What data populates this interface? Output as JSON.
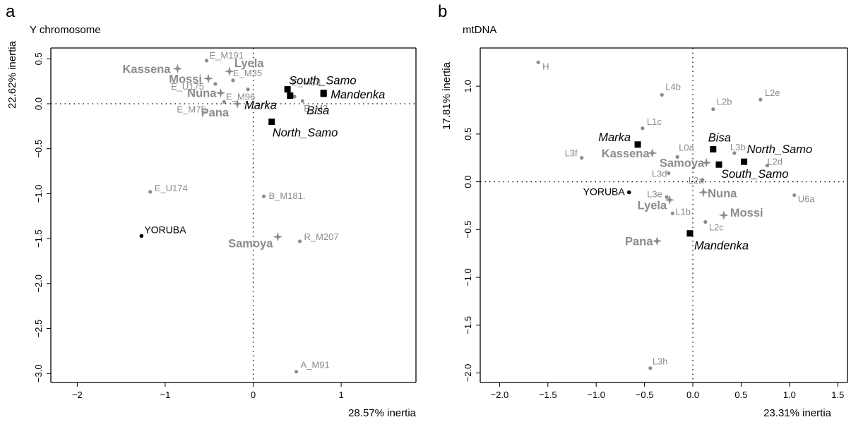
{
  "chart_data": [
    {
      "panel_letter": "a",
      "title": "Y chromosome",
      "type": "scatter",
      "xlabel": "28.57% inertia",
      "ylabel": "22.62% inertia",
      "xlim": [
        -2.3,
        1.85
      ],
      "ylim": [
        -3.1,
        0.62
      ],
      "xticks": [
        -2,
        -1,
        0,
        1
      ],
      "yticks": [
        -3.0,
        -2.5,
        -2.0,
        -1.5,
        -1.0,
        -0.5,
        0.0,
        0.5
      ],
      "xtick_labels": [
        "−2",
        "−1",
        "0",
        "1"
      ],
      "ytick_labels": [
        "−3.0",
        "−2.5",
        "−2.0",
        "−1.5",
        "−1.0",
        "−0.5",
        "0.0",
        "0.5"
      ],
      "grid": false,
      "reference_lines": {
        "x": 0,
        "y": 0
      },
      "colors": {
        "gray": "#8c8c8c",
        "black": "#000000"
      },
      "series": [
        {
          "kind": "haplogroups",
          "marker": "dot",
          "points": [
            {
              "label": "E_M191",
              "x": -0.53,
              "y": 0.48
            },
            {
              "label": "E_M35",
              "x": -0.23,
              "y": 0.26
            },
            {
              "label": "E_M33",
              "x": 0.47,
              "y": 0.08
            },
            {
              "label": "E_U175",
              "x": -0.43,
              "y": 0.22
            },
            {
              "label": "E_M96",
              "x": -0.06,
              "y": 0.16
            },
            {
              "label": "E_M75",
              "x": -0.33,
              "y": 0.02
            },
            {
              "label": "E_M2",
              "x": 0.56,
              "y": 0.03
            },
            {
              "label": "E_U174",
              "x": -1.17,
              "y": -0.98
            },
            {
              "label": "B_M181.",
              "x": 0.12,
              "y": -1.03
            },
            {
              "label": "R_M207",
              "x": 0.53,
              "y": -1.53
            },
            {
              "label": "A_M91",
              "x": 0.49,
              "y": -2.98
            }
          ]
        },
        {
          "kind": "reference",
          "marker": "dot",
          "points": [
            {
              "label": "YORUBA",
              "x": -1.27,
              "y": -1.47
            }
          ]
        },
        {
          "kind": "gray-populations",
          "marker": "star",
          "points": [
            {
              "label": "Kassena",
              "x": -0.86,
              "y": 0.39
            },
            {
              "label": "Lyela",
              "x": -0.27,
              "y": 0.36
            },
            {
              "label": "Mossi",
              "x": -0.51,
              "y": 0.28
            },
            {
              "label": "Nuna",
              "x": -0.37,
              "y": 0.12
            },
            {
              "label": "Pana",
              "x": -0.18,
              "y": 0.0
            },
            {
              "label": "Samoya",
              "x": 0.28,
              "y": -1.48
            }
          ]
        },
        {
          "kind": "black-populations",
          "marker": "square",
          "points": [
            {
              "label": "South_Samo",
              "x": 0.39,
              "y": 0.16
            },
            {
              "label": "Mandenka",
              "x": 0.8,
              "y": 0.12
            },
            {
              "label": "Marka",
              "x": 0.42,
              "y": 0.09
            },
            {
              "label": "Bisa",
              "x": 0.8,
              "y": 0.11
            },
            {
              "label": "North_Samo",
              "x": 0.21,
              "y": -0.2
            }
          ]
        }
      ]
    },
    {
      "panel_letter": "b",
      "title": "mtDNA",
      "type": "scatter",
      "xlabel": "23.31% inertia",
      "ylabel": "17.81% inertia",
      "xlim": [
        -2.2,
        1.6
      ],
      "ylim": [
        -2.1,
        1.4
      ],
      "xticks": [
        -2.0,
        -1.5,
        -1.0,
        -0.5,
        0.0,
        0.5,
        1.0,
        1.5
      ],
      "yticks": [
        -2.0,
        -1.5,
        -1.0,
        -0.5,
        0.0,
        0.5,
        1.0
      ],
      "xtick_labels": [
        "−2.0",
        "−1.5",
        "−1.0",
        "−0.5",
        "0.0",
        "0.5",
        "1.0",
        "1.5"
      ],
      "ytick_labels": [
        "−2.0",
        "−1.5",
        "−1.0",
        "−0.5",
        "0.0",
        "0.5",
        "1.0"
      ],
      "grid": false,
      "reference_lines": {
        "x": 0,
        "y": 0
      },
      "colors": {
        "gray": "#8c8c8c",
        "black": "#000000"
      },
      "series": [
        {
          "kind": "haplogroups",
          "marker": "dot",
          "points": [
            {
              "label": "H",
              "x": -1.6,
              "y": 1.25
            },
            {
              "label": "L4b",
              "x": -0.32,
              "y": 0.91
            },
            {
              "label": "L2b",
              "x": 0.21,
              "y": 0.76
            },
            {
              "label": "L2e",
              "x": 0.7,
              "y": 0.86
            },
            {
              "label": "L1c",
              "x": -0.52,
              "y": 0.56
            },
            {
              "label": "L3f",
              "x": -1.15,
              "y": 0.25
            },
            {
              "label": "L0a",
              "x": -0.16,
              "y": 0.26
            },
            {
              "label": "L3b",
              "x": 0.43,
              "y": 0.3
            },
            {
              "label": "L2d",
              "x": 0.77,
              "y": 0.17
            },
            {
              "label": "L3d",
              "x": -0.25,
              "y": 0.09
            },
            {
              "label": "L2a",
              "x": 0.1,
              "y": 0.02
            },
            {
              "label": "L3e",
              "x": -0.27,
              "y": -0.16
            },
            {
              "label": "L1b",
              "x": -0.21,
              "y": -0.33
            },
            {
              "label": "L2c",
              "x": 0.13,
              "y": -0.42
            },
            {
              "label": "U6a",
              "x": 1.05,
              "y": -0.14
            },
            {
              "label": "L3h",
              "x": -0.44,
              "y": -1.95
            }
          ]
        },
        {
          "kind": "reference",
          "marker": "dot",
          "points": [
            {
              "label": "YORUBA",
              "x": -0.66,
              "y": -0.11
            }
          ]
        },
        {
          "kind": "gray-populations",
          "marker": "star",
          "points": [
            {
              "label": "Kassena",
              "x": -0.42,
              "y": 0.3
            },
            {
              "label": "Samoya",
              "x": 0.14,
              "y": 0.2
            },
            {
              "label": "Nuna",
              "x": 0.11,
              "y": -0.11
            },
            {
              "label": "Lyela",
              "x": -0.24,
              "y": -0.19
            },
            {
              "label": "Mossi",
              "x": 0.32,
              "y": -0.35
            },
            {
              "label": "Pana",
              "x": -0.37,
              "y": -0.62
            }
          ]
        },
        {
          "kind": "black-populations",
          "marker": "square",
          "points": [
            {
              "label": "Marka",
              "x": -0.57,
              "y": 0.39
            },
            {
              "label": "Bisa",
              "x": 0.21,
              "y": 0.34
            },
            {
              "label": "North_Samo",
              "x": 0.53,
              "y": 0.21
            },
            {
              "label": "South_Samo",
              "x": 0.27,
              "y": 0.18
            },
            {
              "label": "Mandenka",
              "x": -0.03,
              "y": -0.54
            }
          ]
        }
      ]
    }
  ]
}
